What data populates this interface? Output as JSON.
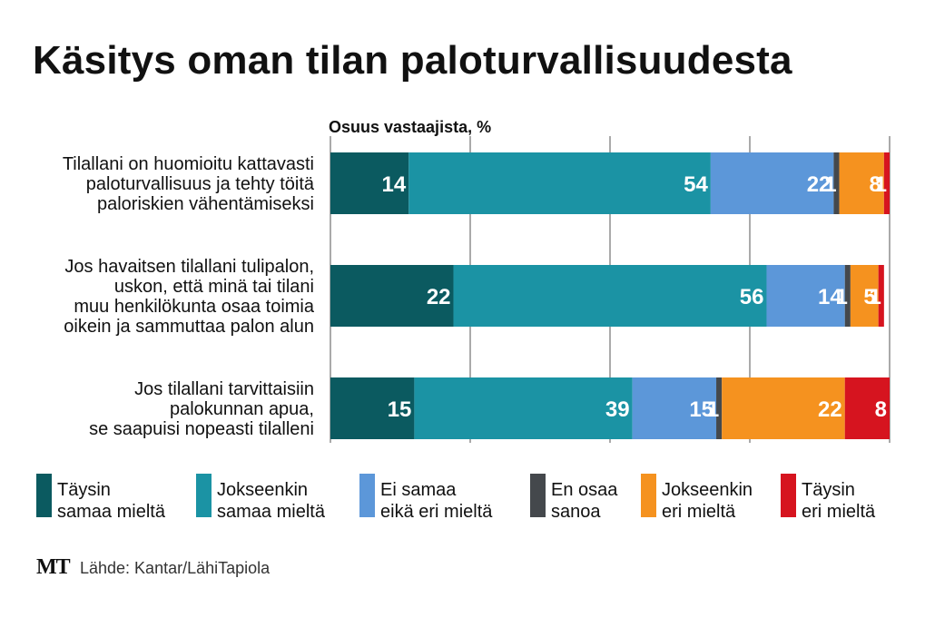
{
  "title": "Käsitys oman tilan paloturvallisuudesta",
  "brand": "MT",
  "source": "Lähde: Kantar/LähiTapiola",
  "colors": {
    "taysin_samaa": "#0b5a60",
    "jokseenkin_samaa": "#1b93a4",
    "ei_samaa_eika_eri": "#5c97d9",
    "en_osaa": "#44484c",
    "jokseenkin_eri": "#f5921f",
    "taysin_eri": "#d6141f",
    "grid": "#555555"
  },
  "chart_data": {
    "type": "bar",
    "orientation": "horizontal",
    "stacked": true,
    "axis_label": "Osuus vastaajista, %",
    "xlim": [
      0,
      100
    ],
    "grid": true,
    "legend_position": "bottom",
    "categories": [
      [
        "Tilallani on huomioitu kattavasti",
        "paloturvallisuus ja tehty töitä",
        "paloriskien vähentämiseksi"
      ],
      [
        "Jos havaitsen tilallani tulipalon,",
        "uskon, että minä tai tilani",
        "muu henkilökunta osaa toimia",
        "oikein ja sammuttaa palon alun"
      ],
      [
        "Jos tilallani tarvittaisiin",
        "palokunnan apua,",
        "se saapuisi nopeasti tilalleni"
      ]
    ],
    "series": [
      {
        "name": [
          "Täysin",
          "samaa mieltä"
        ],
        "color": "#0b5a60",
        "values": [
          14,
          22,
          15
        ]
      },
      {
        "name": [
          "Jokseenkin",
          "samaa mieltä"
        ],
        "color": "#1b93a4",
        "values": [
          54,
          56,
          39
        ]
      },
      {
        "name": [
          "Ei samaa",
          "eikä eri mieltä"
        ],
        "color": "#5c97d9",
        "values": [
          22,
          14,
          15
        ]
      },
      {
        "name": [
          "En osaa",
          "sanoa"
        ],
        "color": "#44484c",
        "values": [
          1,
          1,
          1
        ]
      },
      {
        "name": [
          "Jokseenkin",
          "eri mieltä"
        ],
        "color": "#f5921f",
        "values": [
          8,
          5,
          22
        ]
      },
      {
        "name": [
          "Täysin",
          "eri mieltä"
        ],
        "color": "#d6141f",
        "values": [
          1,
          1,
          8
        ]
      }
    ]
  }
}
